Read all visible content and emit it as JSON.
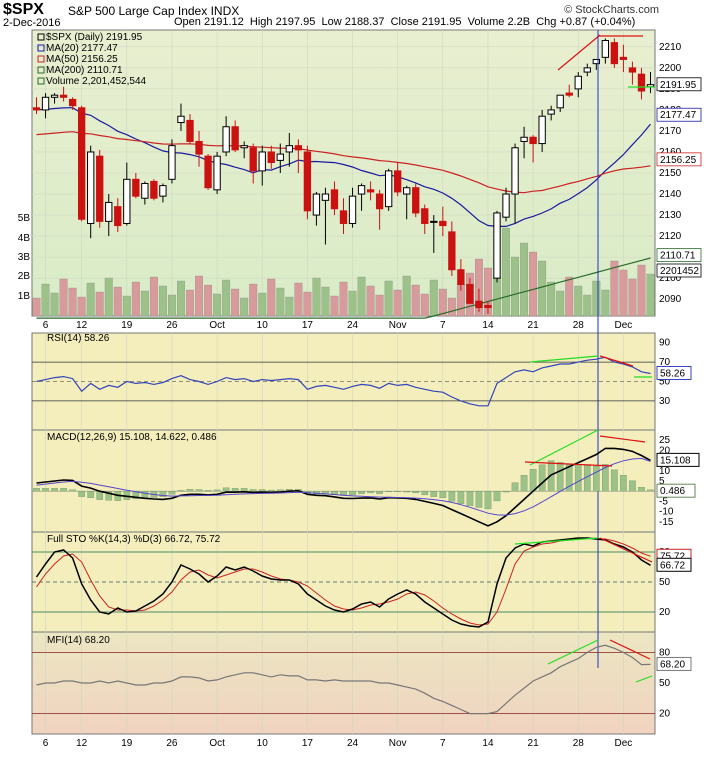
{
  "header": {
    "symbol": "$SPX",
    "name": "S&P 500 Large Cap Index",
    "exchange": "INDX",
    "date": "2-Dec-2016",
    "brand": "© StockCharts.com",
    "open_label": "Open",
    "open": "2191.12",
    "high_label": "High",
    "high": "2197.95",
    "low_label": "Low",
    "low": "2188.37",
    "close_label": "Close",
    "close": "2191.95",
    "volume_label": "Volume",
    "volume": "2.2B",
    "chg_label": "Chg",
    "chg": "+0.87 (+0.04%)"
  },
  "chart_data": [
    {
      "type": "candlestick",
      "legend": [
        "$SPX (Daily) 2191.95",
        "MA(20) 2177.47",
        "MA(50) 2156.25",
        "MA(200) 2110.71",
        "Volume 2,201,452,544"
      ],
      "ylim": [
        2082,
        2218
      ],
      "y_ticks": [
        2090,
        2100,
        2110,
        2120,
        2130,
        2140,
        2150,
        2160,
        2170,
        2180,
        2190,
        2200,
        2210
      ],
      "volume_ticks": [
        "1B",
        "2B",
        "3B",
        "4B",
        "5B"
      ],
      "x_tick_labels": [
        "6",
        "12",
        "19",
        "26",
        "Oct",
        "10",
        "17",
        "24",
        "Nov",
        "7",
        "14",
        "21",
        "28",
        "Dec"
      ],
      "last_value_tags": [
        "2191.95",
        "2177.47",
        "2156.25",
        "2110.71",
        "2201452"
      ],
      "candles": [
        [
          2181,
          2186,
          2178,
          2180
        ],
        [
          2180,
          2188,
          2176,
          2186
        ],
        [
          2186,
          2188,
          2183,
          2187
        ],
        [
          2187,
          2191,
          2184,
          2186
        ],
        [
          2185,
          2186,
          2180,
          2182
        ],
        [
          2181,
          2182,
          2127,
          2128
        ],
        [
          2126,
          2163,
          2119,
          2160
        ],
        [
          2158,
          2161,
          2124,
          2127
        ],
        [
          2127,
          2140,
          2120,
          2136
        ],
        [
          2134,
          2138,
          2122,
          2125
        ],
        [
          2126,
          2155,
          2125,
          2147
        ],
        [
          2147,
          2150,
          2138,
          2139
        ],
        [
          2138,
          2146,
          2135,
          2145
        ],
        [
          2146,
          2147,
          2137,
          2138
        ],
        [
          2139,
          2145,
          2136,
          2144
        ],
        [
          2147,
          2166,
          2145,
          2163
        ],
        [
          2174,
          2183,
          2170,
          2177
        ],
        [
          2175,
          2178,
          2164,
          2165
        ],
        [
          2165,
          2170,
          2153,
          2159
        ],
        [
          2158,
          2159,
          2142,
          2143
        ],
        [
          2142,
          2160,
          2140,
          2158
        ],
        [
          2160,
          2177,
          2158,
          2172
        ],
        [
          2172,
          2175,
          2160,
          2161
        ],
        [
          2162,
          2165,
          2157,
          2163
        ],
        [
          2162,
          2164,
          2145,
          2151
        ],
        [
          2151,
          2163,
          2144,
          2160
        ],
        [
          2160,
          2163,
          2152,
          2155
        ],
        [
          2156,
          2164,
          2150,
          2159
        ],
        [
          2160,
          2169,
          2153,
          2163
        ],
        [
          2163,
          2166,
          2150,
          2161
        ],
        [
          2160,
          2163,
          2128,
          2132
        ],
        [
          2130,
          2141,
          2125,
          2140
        ],
        [
          2137,
          2143,
          2116,
          2140
        ],
        [
          2142,
          2146,
          2130,
          2133
        ],
        [
          2132,
          2138,
          2121,
          2126
        ],
        [
          2126,
          2143,
          2124,
          2139
        ],
        [
          2140,
          2145,
          2132,
          2144
        ],
        [
          2142,
          2146,
          2137,
          2141
        ],
        [
          2140,
          2142,
          2123,
          2133
        ],
        [
          2134,
          2152,
          2132,
          2151
        ],
        [
          2151,
          2155,
          2139,
          2141
        ],
        [
          2140,
          2144,
          2128,
          2143
        ],
        [
          2143,
          2145,
          2129,
          2131
        ],
        [
          2133,
          2135,
          2121,
          2126
        ],
        [
          2127,
          2130,
          2112,
          2127
        ],
        [
          2127,
          2134,
          2120,
          2125
        ],
        [
          2122,
          2127,
          2101,
          2104
        ],
        [
          2104,
          2109,
          2094,
          2097
        ],
        [
          2097,
          2100,
          2089,
          2088
        ],
        [
          2089,
          2095,
          2084,
          2086
        ],
        [
          2087,
          2089,
          2083,
          2086
        ],
        [
          2100,
          2132,
          2098,
          2131
        ],
        [
          2129,
          2143,
          2127,
          2140
        ],
        [
          2140,
          2164,
          2126,
          2162
        ],
        [
          2165,
          2172,
          2157,
          2167
        ],
        [
          2167,
          2168,
          2155,
          2164
        ],
        [
          2164,
          2180,
          2160,
          2177
        ],
        [
          2178,
          2182,
          2175,
          2180
        ],
        [
          2181,
          2187,
          2179,
          2187
        ],
        [
          2188,
          2192,
          2186,
          2187
        ],
        [
          2190,
          2198,
          2186,
          2196
        ],
        [
          2198,
          2202,
          2196,
          2200
        ],
        [
          2202,
          2204,
          2199,
          2204
        ],
        [
          2205,
          2214,
          2202,
          2213
        ],
        [
          2212,
          2214,
          2200,
          2202
        ],
        [
          2205,
          2211,
          2198,
          2204
        ],
        [
          2200,
          2203,
          2192,
          2198
        ],
        [
          2197,
          2200,
          2185,
          2189
        ],
        [
          2191,
          2198,
          2188,
          2192
        ]
      ]
    },
    {
      "type": "line",
      "legend": [
        "RSI(14) 58.26"
      ],
      "ylim": [
        0,
        100
      ],
      "y_ticks": [
        30,
        50,
        70,
        90
      ],
      "last_value_tag": "58.26",
      "values": [
        50,
        52,
        54,
        55,
        53,
        40,
        48,
        42,
        46,
        44,
        50,
        48,
        49,
        47,
        49,
        53,
        56,
        52,
        50,
        47,
        50,
        54,
        52,
        53,
        50,
        52,
        51,
        52,
        53,
        52,
        42,
        45,
        46,
        44,
        42,
        45,
        47,
        46,
        43,
        48,
        46,
        47,
        44,
        42,
        40,
        39,
        34,
        30,
        27,
        25,
        25,
        48,
        54,
        60,
        62,
        60,
        64,
        66,
        68,
        68,
        70,
        72,
        73,
        75,
        70,
        68,
        65,
        60,
        58.26
      ]
    },
    {
      "type": "line",
      "legend": [
        "MACD(12,26,9) 15.108, 14.622, 0.486"
      ],
      "ylim": [
        -20,
        30
      ],
      "y_ticks": [
        -15,
        -10,
        -5,
        0,
        5,
        10,
        15,
        20,
        25
      ],
      "last_value_tags": [
        "15.108",
        "0.486"
      ],
      "macd": [
        4,
        4.5,
        5,
        5.5,
        5.3,
        2.5,
        1.5,
        0,
        -1,
        -2,
        -2.5,
        -3,
        -3.5,
        -3.8,
        -4,
        -3.5,
        -2,
        -1.5,
        -1.5,
        -1.8,
        -1.5,
        -0.5,
        -0.5,
        -0.3,
        -0.6,
        -0.5,
        -0.6,
        -0.4,
        0,
        0.2,
        -1.5,
        -2,
        -2.2,
        -2.8,
        -3.5,
        -3.6,
        -3.4,
        -3.3,
        -3.8,
        -3.2,
        -3.3,
        -3.5,
        -4,
        -5,
        -6,
        -7,
        -9,
        -11,
        -13,
        -15,
        -17,
        -15,
        -12,
        -8,
        -4,
        0,
        4,
        8,
        10,
        12,
        14,
        16,
        18,
        21,
        21,
        20.5,
        19.5,
        17.5,
        15.108
      ],
      "signal": [
        3,
        3.5,
        4,
        4.5,
        4.8,
        4.4,
        3.8,
        3,
        2.2,
        1.3,
        0.5,
        -0.3,
        -1,
        -1.6,
        -2.1,
        -2.4,
        -2.3,
        -2.2,
        -2.1,
        -2.1,
        -2,
        -1.7,
        -1.5,
        -1.3,
        -1.2,
        -1.1,
        -1,
        -0.9,
        -0.7,
        -0.5,
        -0.7,
        -1,
        -1.3,
        -1.6,
        -2,
        -2.3,
        -2.5,
        -2.7,
        -2.9,
        -3,
        -3.1,
        -3.2,
        -3.4,
        -3.7,
        -4.1,
        -4.7,
        -5.5,
        -6.6,
        -7.9,
        -9.3,
        -10.8,
        -11.6,
        -11.7,
        -11,
        -9.6,
        -7.7,
        -5.3,
        -2.7,
        -0.1,
        2.4,
        4.8,
        7.1,
        9.3,
        11.6,
        13.5,
        14.9,
        15.8,
        16.1,
        14.622
      ],
      "histogram_label": "0.486"
    },
    {
      "type": "line",
      "legend": [
        "Full STO %K(14,3) %D(3) 66.72, 75.72"
      ],
      "ylim": [
        0,
        100
      ],
      "y_ticks": [
        20,
        50,
        80
      ],
      "last_value_tags": [
        "75.72",
        "66.72"
      ],
      "k": [
        55,
        68,
        80,
        82,
        74,
        48,
        32,
        20,
        18,
        24,
        20,
        21,
        26,
        31,
        38,
        50,
        67,
        63,
        58,
        50,
        56,
        65,
        62,
        65,
        61,
        56,
        53,
        52,
        52,
        48,
        38,
        32,
        26,
        22,
        20,
        23,
        28,
        30,
        25,
        33,
        38,
        42,
        38,
        30,
        24,
        18,
        12,
        8,
        6,
        5,
        10,
        48,
        74,
        84,
        88,
        86,
        90,
        91,
        92,
        93,
        94,
        94,
        93,
        92,
        88,
        85,
        80,
        72,
        66.72
      ],
      "d": [
        45,
        58,
        68,
        76,
        78,
        70,
        52,
        36,
        25,
        22,
        22,
        21,
        22,
        26,
        32,
        40,
        52,
        60,
        62,
        57,
        54,
        57,
        60,
        63,
        63,
        60,
        56,
        53,
        52,
        50,
        46,
        39,
        32,
        26,
        23,
        22,
        24,
        27,
        28,
        30,
        33,
        38,
        40,
        37,
        31,
        24,
        18,
        13,
        9,
        7,
        8,
        20,
        43,
        68,
        81,
        85,
        88,
        89,
        91,
        92,
        93,
        93.5,
        93.5,
        93,
        91,
        88,
        84,
        79,
        75.72
      ]
    },
    {
      "type": "line",
      "legend": [
        "MFI(14) 68.20"
      ],
      "ylim": [
        0,
        100
      ],
      "y_ticks": [
        20,
        50,
        80
      ],
      "last_value_tag": "68.20",
      "values": [
        48,
        50,
        50,
        52,
        52,
        50,
        50,
        52,
        50,
        52,
        50,
        48,
        48,
        50,
        50,
        52,
        56,
        56,
        55,
        52,
        53,
        56,
        58,
        60,
        60,
        58,
        56,
        58,
        57,
        57,
        53,
        53,
        52,
        53,
        52,
        52,
        52,
        52,
        50,
        50,
        48,
        46,
        44,
        40,
        35,
        32,
        28,
        24,
        20,
        20,
        20,
        22,
        30,
        38,
        45,
        52,
        56,
        60,
        66,
        70,
        74,
        80,
        85,
        87,
        84,
        80,
        75,
        68,
        68.2
      ]
    }
  ],
  "pane2_x_tick_labels": [
    "6",
    "12",
    "19",
    "26",
    "Oct",
    "10",
    "17",
    "24",
    "Nov",
    "7",
    "14",
    "21",
    "28",
    "Dec"
  ],
  "colors": {
    "price_bg_top": "#e8efd0",
    "price_bg_bottom": "#d9ebc7",
    "indicator_bg": "#f3eebc",
    "mfi_bg_top": "#ece6c2",
    "mfi_bg_bottom": "#f0d3c0",
    "up_candle": "#000000",
    "down_candle": "#cc1111",
    "ma20": "#1a1aa0",
    "ma50": "#cc2222",
    "ma200": "#2a6a2a",
    "volume_up": "#9cc28a",
    "volume_down": "#d89a9a",
    "annot_red": "#dd1111",
    "annot_green": "#22dd22"
  }
}
